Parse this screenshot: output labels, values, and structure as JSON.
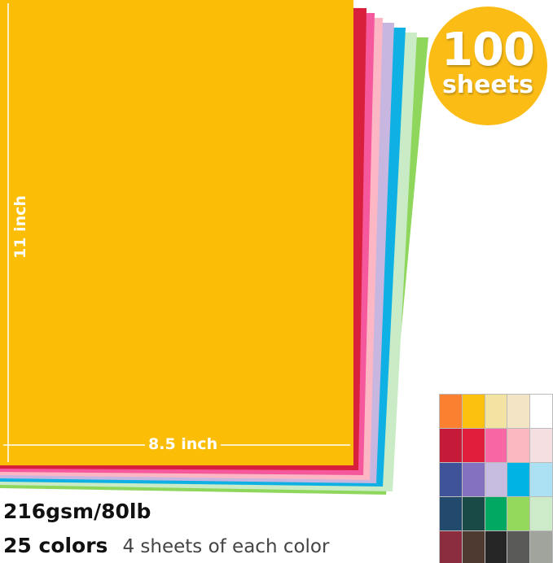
{
  "badge": {
    "number": "100",
    "unit": "sheets",
    "color": "#fbbc16"
  },
  "dimensions": {
    "height": "11 inch",
    "width": "8.5 inch"
  },
  "specs": {
    "weight": "216gsm/80lb",
    "colors": "25 colors",
    "per_color": "4 sheets of each color"
  },
  "sheet_colors": [
    "#8fd65c",
    "#c9ecc6",
    "#0fb0e4",
    "#c6b6e0",
    "#fdb6c3",
    "#f5589c",
    "#d8203c",
    "#fbbd05"
  ],
  "swatch_colors": [
    "#fb8030",
    "#fbc10e",
    "#f3e3a3",
    "#f3e4c6",
    "#ffffff",
    "#c51b39",
    "#df1f3b",
    "#f767a4",
    "#fbb7c0",
    "#f5dfe1",
    "#3e539a",
    "#8471bf",
    "#c6bce0",
    "#00b3e5",
    "#ace0f3",
    "#214a6c",
    "#1a4a45",
    "#00a862",
    "#95d95c",
    "#cdebc8",
    "#8b2d3e",
    "#4e3a30",
    "#262626",
    "#5a5a58",
    "#a1a39d"
  ]
}
